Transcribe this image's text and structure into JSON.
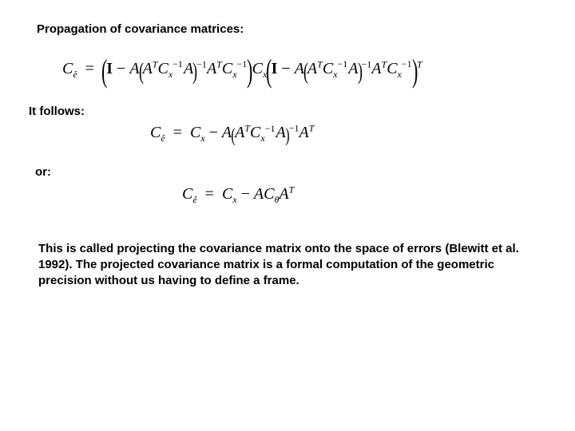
{
  "slide": {
    "background_color": "#ffffff",
    "text_color": "#000000",
    "heading_font": {
      "family": "Arial",
      "size_pt": 15,
      "weight": "bold"
    },
    "equation_font": {
      "family": "Times New Roman",
      "size_pt": 20,
      "weight": "normal"
    },
    "body_font": {
      "family": "Arial",
      "size_pt": 15,
      "weight": "bold"
    }
  },
  "heading": "Propagation of covariance matrices:",
  "labels": {
    "follows": "It follows:",
    "or": "or:"
  },
  "equations": {
    "e1": {
      "lhs_symbol": "C",
      "lhs_sub": "ê",
      "latex_like": "C_{\\hat e} = ( I - A (A^{T} C_{x}^{-1} A)^{-1} A^{T} C_{x}^{-1} ) C_{x} ( I - A (A^{T} C_{x}^{-1} A)^{-1} A^{T} C_{x}^{-1} )^{T}"
    },
    "e2": {
      "lhs_symbol": "C",
      "lhs_sub": "ê",
      "latex_like": "C_{\\hat e} = C_{x} - A (A^{T} C_{x}^{-1} A)^{-1} A^{T}"
    },
    "e3": {
      "lhs_symbol": "C",
      "lhs_sub": "ê",
      "latex_like": "C_{\\hat e} = C_{x} - A C_{\\theta} A^{T}"
    }
  },
  "paragraph": "This is called projecting the covariance matrix onto the space of errors (Blewitt et al. 1992). The projected covariance matrix is a formal computation of the geometric precision without us having to define a frame."
}
